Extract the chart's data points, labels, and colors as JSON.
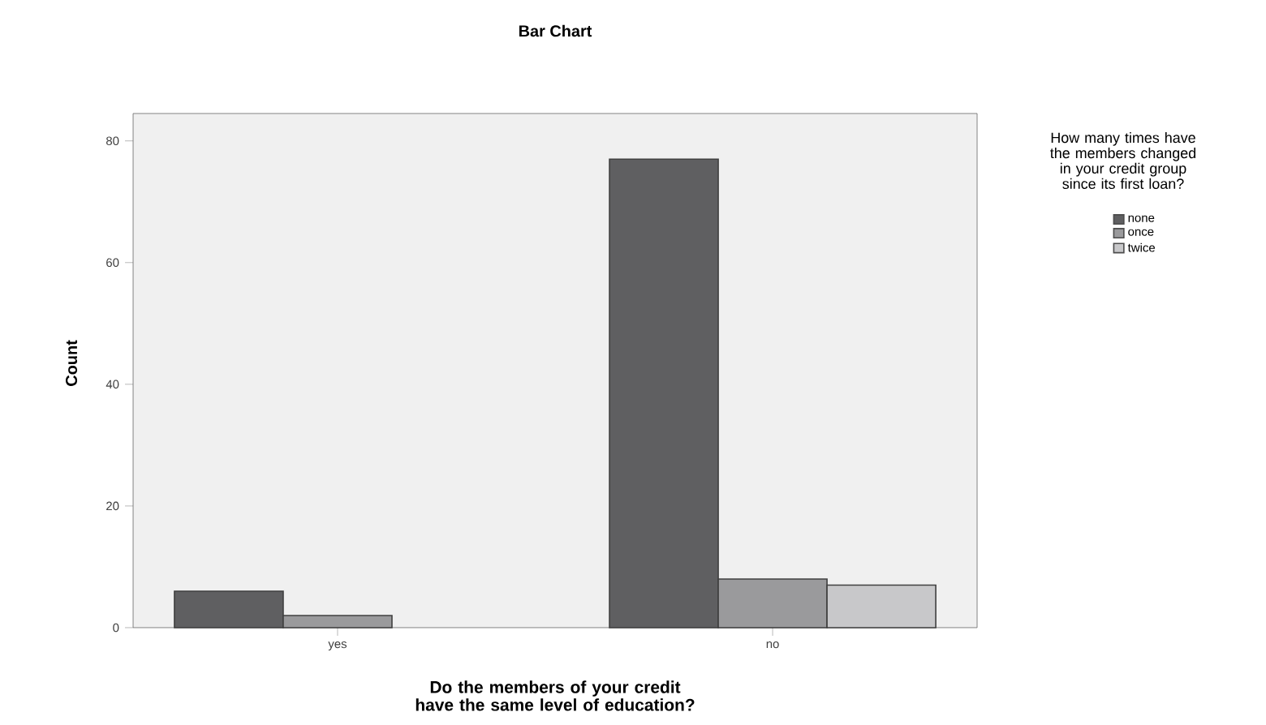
{
  "chart_data": {
    "type": "bar",
    "title": "Bar Chart",
    "xlabel": "Do the members of your credit have the same level of education?",
    "ylabel": "Count",
    "legend_title": "How many times have the members changed in your credit group since its first loan?",
    "categories": [
      "yes",
      "no"
    ],
    "series": [
      {
        "name": "none",
        "color": "#5f5f61",
        "values": [
          6,
          77
        ]
      },
      {
        "name": "once",
        "color": "#9a9a9c",
        "values": [
          2,
          8
        ]
      },
      {
        "name": "twice",
        "color": "#c8c8ca",
        "values": [
          null,
          7
        ]
      }
    ],
    "ylim": [
      0,
      84.5
    ],
    "yticks": [
      0,
      20,
      40,
      60,
      80
    ],
    "grid": false,
    "legend": "right"
  }
}
